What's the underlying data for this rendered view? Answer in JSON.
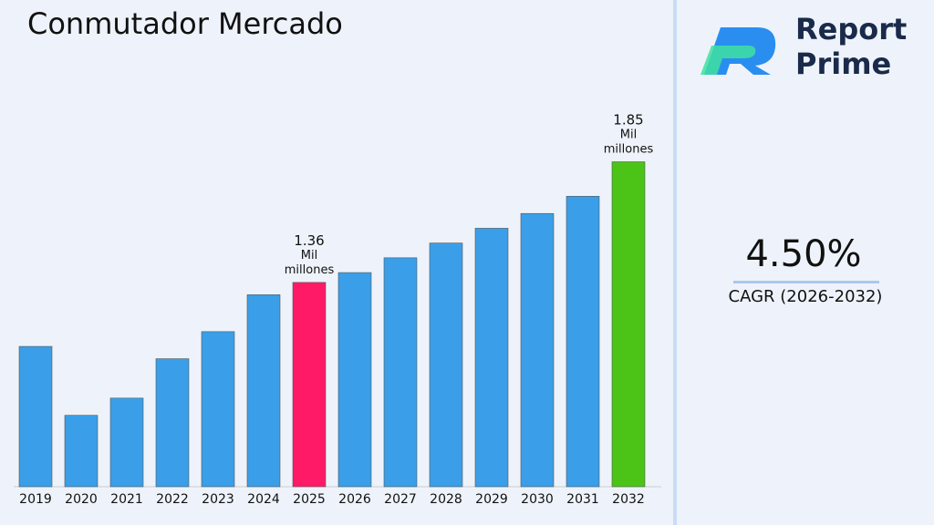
{
  "chart_data": {
    "type": "bar",
    "title": "Conmutador Mercado",
    "categories": [
      "2019",
      "2020",
      "2021",
      "2022",
      "2023",
      "2024",
      "2025",
      "2026",
      "2027",
      "2028",
      "2029",
      "2030",
      "2031",
      "2032"
    ],
    "values": [
      1.1,
      0.82,
      0.89,
      1.05,
      1.16,
      1.31,
      1.36,
      1.4,
      1.46,
      1.52,
      1.58,
      1.64,
      1.71,
      1.85
    ],
    "value_labels": [
      null,
      null,
      null,
      null,
      null,
      null,
      "1.36 Mil millones",
      null,
      null,
      null,
      null,
      null,
      null,
      "1.85 Mil millones"
    ],
    "colors": [
      "#3a9fe8",
      "#3a9fe8",
      "#3a9fe8",
      "#3a9fe8",
      "#3a9fe8",
      "#3a9fe8",
      "#fe1a66",
      "#3a9fe8",
      "#3a9fe8",
      "#3a9fe8",
      "#3a9fe8",
      "#3a9fe8",
      "#3a9fe8",
      "#4cc417"
    ],
    "ylim": [
      0.53,
      2.0
    ]
  },
  "logo": {
    "line1": "Report",
    "line2": "Prime"
  },
  "cagr": {
    "value": "4.50%",
    "label": "CAGR (2026-2032)"
  }
}
